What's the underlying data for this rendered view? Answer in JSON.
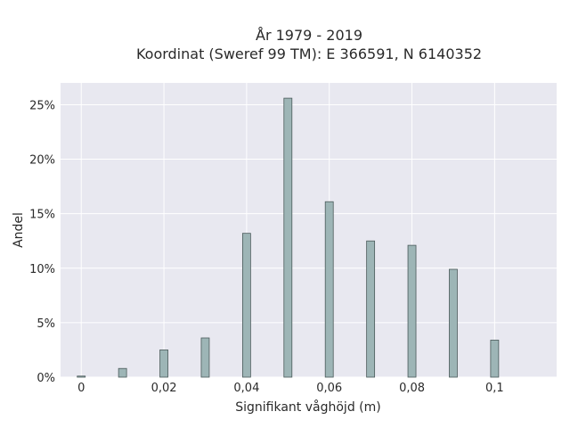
{
  "chart_data": {
    "type": "bar",
    "title_lines": [
      "År 1979 - 2019",
      "Koordinat (Sweref 99 TM): E 366591, N 6140352"
    ],
    "xlabel": "Signifikant våghöjd (m)",
    "ylabel": "Andel",
    "x": [
      0,
      0.01,
      0.02,
      0.03,
      0.04,
      0.05,
      0.06,
      0.07,
      0.08,
      0.09,
      0.1
    ],
    "values": [
      0.1,
      0.8,
      2.5,
      3.6,
      13.2,
      25.6,
      16.1,
      12.5,
      12.1,
      9.9,
      3.4
    ],
    "xlim": [
      -0.005,
      0.115
    ],
    "ylim": [
      0,
      27
    ],
    "x_ticks": [
      0,
      0.02,
      0.04,
      0.06,
      0.08,
      0.1
    ],
    "x_tick_labels": [
      "0",
      "0,02",
      "0,04",
      "0,06",
      "0,08",
      "0,1"
    ],
    "y_ticks": [
      0,
      5,
      10,
      15,
      20,
      25
    ],
    "y_tick_labels": [
      "0%",
      "5%",
      "10%",
      "15%",
      "20%",
      "25%"
    ],
    "grid": true,
    "colors": {
      "bar_fill": "#9db5b6",
      "bar_stroke": "#4a5a5a",
      "plot_bg": "#e8e8f0",
      "grid": "#ffffff"
    }
  }
}
